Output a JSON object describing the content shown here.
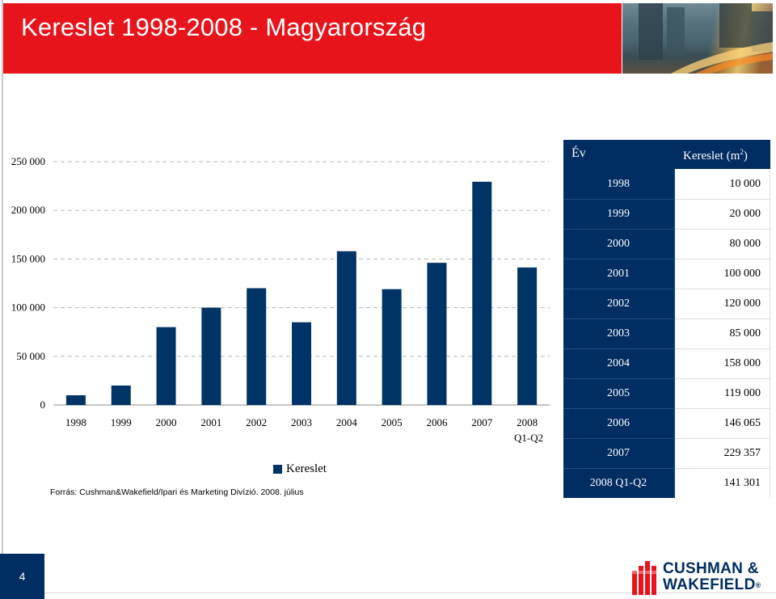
{
  "header": {
    "title": "Kereslet 1998-2008 - Magyarország"
  },
  "colors": {
    "header_red": "#e8141c",
    "bar_navy": "#003366",
    "table_navy": "#002d62"
  },
  "chart_data": {
    "type": "bar",
    "categories": [
      "1998",
      "1999",
      "2000",
      "2001",
      "2002",
      "2003",
      "2004",
      "2005",
      "2006",
      "2007",
      "2008 Q1-Q2"
    ],
    "category_lines": [
      [
        "1998"
      ],
      [
        "1999"
      ],
      [
        "2000"
      ],
      [
        "2001"
      ],
      [
        "2002"
      ],
      [
        "2003"
      ],
      [
        "2004"
      ],
      [
        "2005"
      ],
      [
        "2006"
      ],
      [
        "2007"
      ],
      [
        "2008",
        "Q1-Q2"
      ]
    ],
    "series": [
      {
        "name": "Kereslet",
        "values": [
          10000,
          20000,
          80000,
          100000,
          120000,
          85000,
          158000,
          119000,
          146065,
          229357,
          141301
        ]
      }
    ],
    "yticks": [
      "0",
      "50 000",
      "100 000",
      "150 000",
      "200 000",
      "250 000"
    ],
    "ylim": [
      0,
      250000
    ],
    "grid": "horizontal-dashed",
    "legend": "bottom"
  },
  "table": {
    "header_year": "Év",
    "header_value": "Kereslet (m",
    "header_value_sup": "2",
    "header_value_end": ")",
    "rows": [
      {
        "year": "1998",
        "value": "10 000"
      },
      {
        "year": "1999",
        "value": "20 000"
      },
      {
        "year": "2000",
        "value": "80 000"
      },
      {
        "year": "2001",
        "value": "100 000"
      },
      {
        "year": "2002",
        "value": "120 000"
      },
      {
        "year": "2003",
        "value": "85 000"
      },
      {
        "year": "2004",
        "value": "158 000"
      },
      {
        "year": "2005",
        "value": "119 000"
      },
      {
        "year": "2006",
        "value": "146 065"
      },
      {
        "year": "2007",
        "value": "229 357"
      },
      {
        "year": "2008 Q1-Q2",
        "value": "141 301"
      }
    ]
  },
  "source": "Forrás: Cushman&Wakefield/Ipari és Marketing Divízió. 2008. július",
  "page_number": "4",
  "logo": {
    "line1": "CUSHMAN &",
    "line2": "WAKEFIELD",
    "mark": "®",
    "icon": "cushman-wakefield-logo-icon"
  }
}
